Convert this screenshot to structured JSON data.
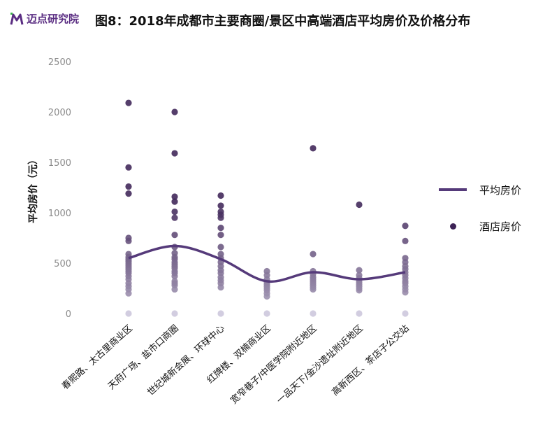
{
  "header": {
    "logo_text": "迈点研究院",
    "title": "图8：2018年成都市主要商圈/景区中高端酒店平均房价及价格分布"
  },
  "legend": {
    "line_label": "平均房价",
    "dot_label": "酒店房价"
  },
  "colors": {
    "line": "#553a7a",
    "dot_dark": "#3d2356",
    "dot_light": "#d2cde0",
    "brand": "#5a2d82"
  },
  "chart_data": {
    "type": "scatter",
    "ylabel": "平均房价（元）",
    "ylim": [
      0,
      2500
    ],
    "yticks": [
      0,
      500,
      1000,
      1500,
      2000,
      2500
    ],
    "grid": false,
    "legend_position": "right",
    "categories": [
      "春熙路、太古里商业区",
      "天府广场、盐市口商圈",
      "世纪城新会展、环球中心",
      "红牌楼、双楠商业区",
      "宽窄巷子/中医学院附近地区",
      "一品天下/金沙遗址附近地区",
      "高新西区、茶店子公交站"
    ],
    "series": [
      {
        "name": "平均房价",
        "type": "line",
        "values": [
          550,
          670,
          540,
          320,
          410,
          340,
          410
        ]
      },
      {
        "name": "酒店房价",
        "type": "scatter",
        "points": [
          [
            2090,
            1450,
            1260,
            1190,
            750,
            720,
            590,
            560,
            540,
            520,
            500,
            480,
            460,
            440,
            420,
            400,
            370,
            340,
            300,
            270,
            240,
            200,
            0
          ],
          [
            2000,
            1590,
            1160,
            1110,
            1010,
            950,
            780,
            660,
            600,
            560,
            540,
            510,
            490,
            470,
            450,
            420,
            400,
            370,
            320,
            300,
            280,
            240,
            0
          ],
          [
            1170,
            1070,
            1010,
            980,
            950,
            850,
            780,
            660,
            590,
            550,
            510,
            470,
            430,
            400,
            360,
            330,
            300,
            260,
            0
          ],
          [
            420,
            380,
            340,
            310,
            290,
            270,
            250,
            230,
            200,
            170,
            0
          ],
          [
            1640,
            590,
            420,
            390,
            360,
            340,
            320,
            300,
            280,
            260,
            240,
            0
          ],
          [
            1080,
            430,
            380,
            350,
            330,
            310,
            290,
            270,
            250,
            230,
            0
          ],
          [
            870,
            720,
            550,
            510,
            470,
            440,
            410,
            380,
            350,
            320,
            300,
            270,
            240,
            210,
            0
          ]
        ]
      }
    ]
  }
}
